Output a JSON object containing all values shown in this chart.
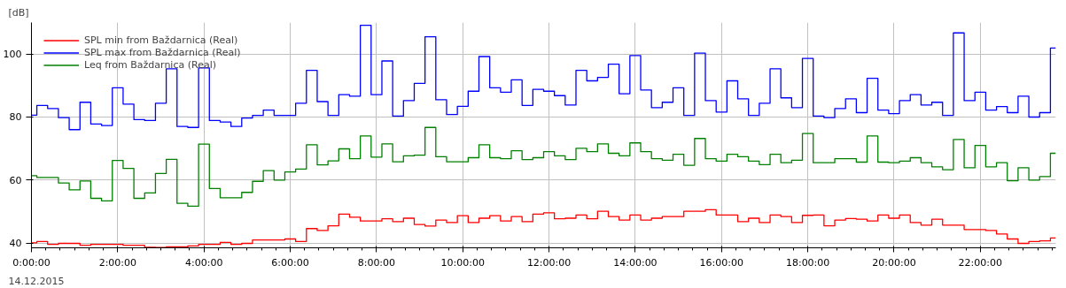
{
  "chart_data": {
    "type": "step",
    "ylabel": "[dB]",
    "annotations": [
      "14.12.2015"
    ],
    "x": [
      0,
      0.25,
      0.5,
      0.75,
      1,
      1.25,
      1.5,
      1.75,
      2,
      2.25,
      2.5,
      2.75,
      3,
      3.25,
      3.5,
      3.75,
      4,
      4.25,
      4.5,
      4.75,
      5,
      5.25,
      5.5,
      5.75,
      6,
      6.25,
      6.5,
      6.75,
      7,
      7.25,
      7.5,
      7.75,
      8,
      8.25,
      8.5,
      8.75,
      9,
      9.25,
      9.5,
      9.75,
      10,
      10.25,
      10.5,
      10.75,
      11,
      11.25,
      11.5,
      11.75,
      12,
      12.25,
      12.5,
      12.75,
      13,
      13.25,
      13.5,
      13.75,
      14,
      14.25,
      14.5,
      14.75,
      15,
      15.25,
      15.5,
      15.75,
      16,
      16.25,
      16.5,
      16.75,
      17,
      17.25,
      17.5,
      17.75,
      18,
      18.25,
      18.5,
      18.75,
      19,
      19.25,
      19.5,
      19.75,
      20,
      20.25,
      20.5,
      20.75,
      21,
      21.25,
      21.5,
      21.75,
      22,
      22.25,
      22.5,
      22.75,
      23,
      23.25,
      23.5,
      23.75
    ],
    "series": [
      {
        "name": "SPL min from Baždarnica (Real)",
        "color": "#ff0000",
        "values": [
          40.1,
          40.5,
          39.6,
          39.9,
          39.9,
          39.3,
          39.6,
          39.6,
          39.6,
          39.3,
          39.3,
          38.7,
          38.6,
          38.8,
          38.8,
          39.1,
          39.6,
          39.6,
          40.2,
          39.6,
          39.9,
          41.0,
          41.0,
          41.0,
          41.3,
          40.5,
          44.6,
          44.0,
          45.5,
          49.2,
          48.2,
          47.0,
          47.0,
          47.7,
          46.8,
          47.9,
          45.9,
          45.4,
          47.3,
          46.5,
          48.7,
          46.5,
          47.9,
          48.7,
          47.0,
          48.4,
          46.8,
          49.2,
          49.6,
          47.7,
          47.9,
          48.9,
          47.7,
          50.1,
          48.4,
          47.3,
          48.9,
          47.3,
          47.9,
          48.4,
          48.4,
          50.1,
          50.1,
          50.6,
          48.9,
          48.9,
          46.8,
          47.9,
          46.5,
          48.9,
          48.4,
          46.5,
          48.8,
          48.9,
          45.5,
          47.3,
          47.8,
          47.6,
          47.0,
          48.9,
          47.9,
          48.9,
          46.5,
          45.7,
          47.6,
          45.7,
          45.7,
          44.3,
          44.3,
          44.0,
          42.9,
          41.3,
          39.9,
          40.5,
          40.7,
          41.6
        ]
      },
      {
        "name": "SPL max from Baždarnica (Real)",
        "color": "#0000ff",
        "values": [
          80.6,
          83.7,
          82.7,
          79.8,
          76.0,
          84.7,
          77.8,
          77.3,
          89.3,
          84.1,
          79.2,
          78.9,
          84.4,
          95.3,
          77.0,
          76.7,
          95.6,
          78.9,
          78.4,
          77.0,
          79.7,
          80.5,
          82.2,
          80.5,
          80.5,
          84.4,
          94.8,
          84.9,
          80.5,
          87.1,
          86.6,
          109.1,
          87.1,
          97.8,
          80.3,
          85.2,
          90.7,
          105.5,
          85.5,
          80.8,
          83.4,
          88.2,
          99.2,
          89.3,
          87.9,
          91.8,
          83.7,
          88.8,
          88.2,
          86.8,
          83.8,
          94.8,
          91.5,
          92.6,
          96.8,
          87.4,
          99.5,
          88.6,
          83.0,
          84.7,
          89.3,
          80.5,
          100.3,
          85.2,
          81.6,
          91.5,
          85.8,
          80.5,
          84.4,
          95.3,
          86.1,
          83.0,
          98.6,
          80.3,
          79.8,
          82.7,
          85.8,
          81.4,
          92.3,
          82.2,
          81.1,
          85.2,
          87.1,
          83.8,
          84.7,
          80.5,
          106.7,
          85.2,
          87.9,
          82.2,
          83.3,
          81.4,
          86.6,
          80.0,
          81.4,
          101.9
        ]
      },
      {
        "name": "Leq from Baždarnica (Real)",
        "color": "#008000",
        "values": [
          61.4,
          60.8,
          60.8,
          59.1,
          56.9,
          59.7,
          54.2,
          53.4,
          66.2,
          63.7,
          54.2,
          55.9,
          62.1,
          66.6,
          52.6,
          51.7,
          71.4,
          57.3,
          54.4,
          54.4,
          56.1,
          59.6,
          63.0,
          60.0,
          62.6,
          63.5,
          71.2,
          64.8,
          66.1,
          69.9,
          66.8,
          74.0,
          67.3,
          71.5,
          65.8,
          67.7,
          67.9,
          76.7,
          67.4,
          65.8,
          65.8,
          67.1,
          71.2,
          67.1,
          66.8,
          69.3,
          66.5,
          67.1,
          69.0,
          67.7,
          66.5,
          70.1,
          69.0,
          71.5,
          68.5,
          67.7,
          71.8,
          69.0,
          66.8,
          66.3,
          68.2,
          64.7,
          73.2,
          66.8,
          66.0,
          68.2,
          67.4,
          66.0,
          64.9,
          68.2,
          65.5,
          66.3,
          74.8,
          65.5,
          65.5,
          66.8,
          66.8,
          65.7,
          74.0,
          65.7,
          65.5,
          66.0,
          67.1,
          65.5,
          64.2,
          63.3,
          72.9,
          63.9,
          71.0,
          64.2,
          65.5,
          59.8,
          63.9,
          60.0,
          61.1,
          68.5
        ]
      }
    ],
    "xlim": [
      0,
      23.75
    ],
    "xticks": [
      {
        "value": 0,
        "label": "0:00:00"
      },
      {
        "value": 2,
        "label": "2:00:00"
      },
      {
        "value": 4,
        "label": "4:00:00"
      },
      {
        "value": 6,
        "label": "6:00:00"
      },
      {
        "value": 8,
        "label": "8:00:00"
      },
      {
        "value": 10,
        "label": "10:00:00"
      },
      {
        "value": 12,
        "label": "12:00:00"
      },
      {
        "value": 14,
        "label": "14:00:00"
      },
      {
        "value": 16,
        "label": "16:00:00"
      },
      {
        "value": 18,
        "label": "18:00:00"
      },
      {
        "value": 20,
        "label": "20:00:00"
      },
      {
        "value": 22,
        "label": "22:00:00"
      }
    ],
    "ylim": [
      38.5,
      110
    ],
    "yticks": [
      40,
      60,
      80,
      100
    ],
    "grid": true,
    "legend": "top left"
  }
}
